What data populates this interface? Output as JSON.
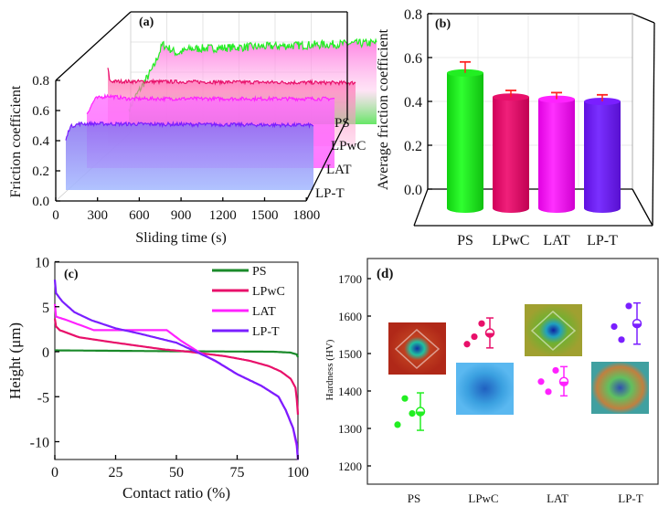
{
  "colors": {
    "PS": "#22ee22",
    "PS_c": "#1a8a2a",
    "LPwC": "#e8106a",
    "LAT": "#ff22ff",
    "LP-T": "#7a1fff",
    "errorbar": "#ff2020"
  },
  "chart_data": [
    {
      "panel": "(a)",
      "type": "line",
      "style": "3D waterfall",
      "xlabel": "Sliding time (s)",
      "ylabel": "Friction coefficient",
      "xlim": [
        0,
        1800
      ],
      "ylim": [
        0,
        0.8
      ],
      "xticks": [
        "0",
        "300",
        "600",
        "900",
        "1200",
        "1500",
        "1800"
      ],
      "yticks": [
        "0.0",
        "0.2",
        "0.4",
        "0.6",
        "0.8"
      ],
      "depth_labels": [
        "PS",
        "LPwC",
        "LAT",
        "LP-T"
      ],
      "grid": true,
      "series": [
        {
          "name": "LP-T",
          "points": [
            [
              0,
              0.33
            ],
            [
              30,
              0.42
            ],
            [
              100,
              0.44
            ],
            [
              1800,
              0.43
            ]
          ]
        },
        {
          "name": "LAT",
          "points": [
            [
              0,
              0.36
            ],
            [
              60,
              0.46
            ],
            [
              150,
              0.48
            ],
            [
              300,
              0.46
            ],
            [
              1800,
              0.46
            ]
          ]
        },
        {
          "name": "LPwC",
          "points": [
            [
              0,
              0.52
            ],
            [
              15,
              0.43
            ],
            [
              1800,
              0.42
            ]
          ]
        },
        {
          "name": "PS",
          "points": [
            [
              0,
              0.1
            ],
            [
              60,
              0.2
            ],
            [
              180,
              0.38
            ],
            [
              245,
              0.53
            ],
            [
              350,
              0.47
            ],
            [
              450,
              0.5
            ],
            [
              1800,
              0.54
            ]
          ]
        }
      ]
    },
    {
      "panel": "(b)",
      "type": "bar",
      "style": "3D cylinder",
      "ylabel": "Average friction coefficient",
      "ylim": [
        0,
        0.8
      ],
      "yticks": [
        "0.0",
        "0.2",
        "0.4",
        "0.6",
        "0.8"
      ],
      "categories": [
        "PS",
        "LPwC",
        "LAT",
        "LP-T"
      ],
      "values": [
        0.53,
        0.42,
        0.41,
        0.4
      ],
      "error_upper": [
        0.58,
        0.45,
        0.44,
        0.43
      ],
      "grid": true
    },
    {
      "panel": "(c)",
      "type": "line",
      "xlabel": "Contact ratio (%)",
      "ylabel": "Height (μm)",
      "xlim": [
        0,
        100
      ],
      "ylim": [
        -12,
        10
      ],
      "xticks": [
        "0",
        "25",
        "50",
        "75",
        "100"
      ],
      "yticks": [
        "10",
        "5",
        "0",
        "-5",
        "-10"
      ],
      "legend": "top-right",
      "series": [
        {
          "name": "PS",
          "points": [
            [
              0,
              0.15
            ],
            [
              50,
              0.05
            ],
            [
              90,
              0
            ],
            [
              97,
              -0.1
            ],
            [
              99.5,
              -0.3
            ],
            [
              100,
              -0.6
            ]
          ]
        },
        {
          "name": "LPwC",
          "points": [
            [
              0,
              3.7
            ],
            [
              0.5,
              2.8
            ],
            [
              2,
              2.4
            ],
            [
              10,
              1.6
            ],
            [
              25,
              1.0
            ],
            [
              45,
              0.25
            ],
            [
              55,
              0
            ],
            [
              70,
              -0.5
            ],
            [
              80,
              -1.0
            ],
            [
              88,
              -1.6
            ],
            [
              93,
              -2.2
            ],
            [
              97,
              -3.0
            ],
            [
              99,
              -4.0
            ],
            [
              99.6,
              -5.5
            ],
            [
              100,
              -7
            ]
          ]
        },
        {
          "name": "LAT",
          "points": [
            [
              0,
              5.3
            ],
            [
              0.5,
              3.9
            ],
            [
              5,
              3.5
            ],
            [
              12,
              2.8
            ],
            [
              16,
              2.4
            ],
            [
              46,
              2.4
            ],
            [
              52,
              1.2
            ],
            [
              59,
              0
            ],
            [
              67,
              -1.2
            ],
            [
              75,
              -2.5
            ],
            [
              85,
              -3.8
            ],
            [
              92,
              -5
            ],
            [
              95,
              -6.5
            ],
            [
              98,
              -8.5
            ],
            [
              99.5,
              -10.5
            ],
            [
              100,
              -12
            ]
          ]
        },
        {
          "name": "LP-T",
          "points": [
            [
              0,
              8
            ],
            [
              0.5,
              6.5
            ],
            [
              3,
              5.6
            ],
            [
              8,
              4.4
            ],
            [
              15,
              3.5
            ],
            [
              25,
              2.6
            ],
            [
              35,
              2.0
            ],
            [
              50,
              1.0
            ],
            [
              58,
              0
            ],
            [
              66,
              -1.0
            ],
            [
              75,
              -2.5
            ],
            [
              85,
              -3.8
            ],
            [
              92,
              -5
            ],
            [
              95,
              -6.5
            ],
            [
              98,
              -8.5
            ],
            [
              99.5,
              -10.2
            ],
            [
              100,
              -12
            ]
          ]
        }
      ]
    },
    {
      "panel": "(d)",
      "type": "scatter",
      "ylabel": "Hardness (HV)",
      "ylim": [
        1150,
        1750
      ],
      "yticks": [
        "1700",
        "1600",
        "1500",
        "1400",
        "1300",
        "1200"
      ],
      "categories": [
        "PS",
        "LPwC",
        "LAT",
        "LP-T"
      ],
      "points": [
        [
          1310,
          1380,
          1340
        ],
        [
          1525,
          1545,
          1580
        ],
        [
          1425,
          1398,
          1455
        ],
        [
          1572,
          1537,
          1627
        ]
      ],
      "mean": [
        1345,
        1555,
        1425,
        1580
      ],
      "error_range": [
        [
          1295,
          1395
        ],
        [
          1515,
          1595
        ],
        [
          1387,
          1465
        ],
        [
          1525,
          1635
        ]
      ],
      "insets": [
        "PS indentation micrograph",
        "LPwC indentation micrograph",
        "LAT indentation micrograph",
        "LP-T indentation micrograph"
      ]
    }
  ]
}
